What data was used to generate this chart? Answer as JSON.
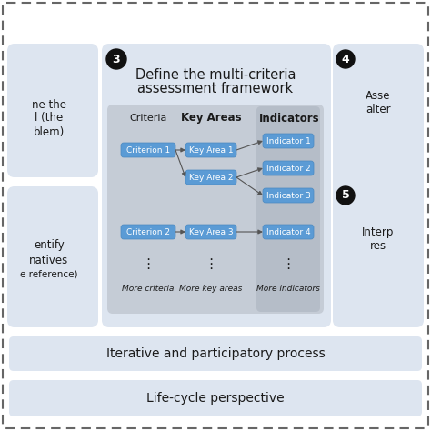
{
  "bg_color": "#ffffff",
  "outer_border_color": "#666666",
  "main_panel_bg": "#dde5f0",
  "inner_panel_bg": "#c5ccd6",
  "dark_panel_bg": "#b5bdc8",
  "box_fill": "#5b9bd5",
  "box_edge": "#4a88c0",
  "box_text_color": "#ffffff",
  "title_line1": "Define the multi-criteria",
  "title_line2": "assessment framework",
  "step3": "3",
  "step4": "4",
  "step5": "5",
  "col_header_criteria": "Criteria",
  "col_header_key": "Key Areas",
  "col_header_ind": "Indicators",
  "criteria_boxes": [
    "Criterion 1",
    "Criterion 2"
  ],
  "key_area_boxes": [
    "Key Area 1",
    "Key Area 2",
    "Key Area 3"
  ],
  "indicator_boxes": [
    "Indicator 1",
    "Indicator 2",
    "Indicator 3",
    "Indicator 4"
  ],
  "more_labels": [
    "More criteria",
    "More key areas",
    "More indicators"
  ],
  "left_top_text": [
    "ne the",
    "l (the",
    "blem)"
  ],
  "left_bot_text": [
    "entify",
    "natives",
    "e reference)"
  ],
  "right_top_text": [
    "Asse",
    "alter"
  ],
  "right_bot_text": [
    "Interp",
    "res"
  ],
  "bar1_text": "Iterative and participatory process",
  "bar2_text": "Life-cycle perspective",
  "arrow_color": "#555555"
}
